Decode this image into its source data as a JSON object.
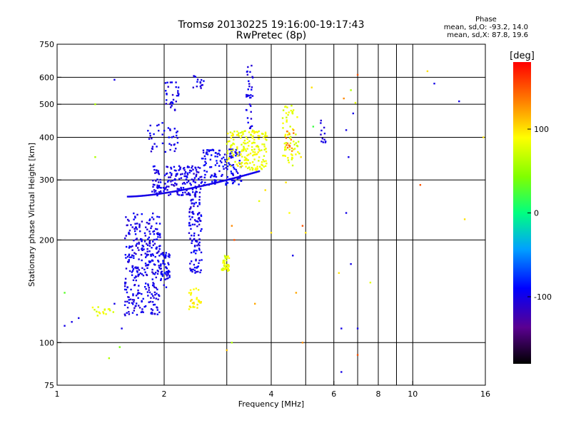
{
  "title": {
    "line1": "Tromsø 20130225 19:16:00-19:17:43",
    "line2": "RwPretec (8p)"
  },
  "phase_info": {
    "label": "Phase",
    "o_line": "mean, sd,O: -93.2, 14.0",
    "x_line": "mean, sd,X:  87.8, 19.6"
  },
  "colorbar": {
    "title": "[deg]",
    "min": -180,
    "max": 180,
    "ticks": [
      100,
      0,
      -100
    ],
    "tick_labels": [
      "100",
      "0",
      "-100"
    ]
  },
  "chart_data": {
    "type": "scatter",
    "xlabel": "Frequency [MHz]",
    "ylabel": "Stationary phase Virtual Height [km]",
    "xscale": "log",
    "yscale": "log",
    "xlim": [
      1,
      16
    ],
    "ylim": [
      75,
      750
    ],
    "x_ticks": [
      1,
      2,
      4,
      6,
      8,
      10,
      16
    ],
    "x_tick_labels": [
      "1",
      "2",
      "4",
      "6",
      "8",
      "10",
      "16"
    ],
    "y_ticks": [
      75,
      100,
      200,
      300,
      400,
      500,
      600,
      750
    ],
    "y_tick_labels": [
      "75",
      "100",
      "200",
      "300",
      "400",
      "500",
      "600",
      "750"
    ],
    "grid": true,
    "clusters": [
      {
        "f": [
          1.55,
          1.95
        ],
        "h": [
          120,
          240
        ],
        "phase": -100,
        "n": 320
      },
      {
        "f": [
          1.95,
          2.08
        ],
        "h": [
          145,
          185
        ],
        "phase": -95,
        "n": 60
      },
      {
        "f": [
          2.35,
          2.55
        ],
        "h": [
          160,
          270
        ],
        "phase": -100,
        "n": 110
      },
      {
        "f": [
          2.35,
          2.55
        ],
        "h": [
          125,
          145
        ],
        "phase": 95,
        "n": 30
      },
      {
        "f": [
          1.85,
          2.55
        ],
        "h": [
          270,
          330
        ],
        "phase": -100,
        "n": 180
      },
      {
        "f": [
          2.55,
          3.3
        ],
        "h": [
          290,
          370
        ],
        "phase": -95,
        "n": 140
      },
      {
        "f": [
          3.0,
          3.9
        ],
        "h": [
          320,
          420
        ],
        "phase": 85,
        "n": 180
      },
      {
        "f": [
          4.3,
          4.8
        ],
        "h": [
          330,
          500
        ],
        "phase": 80,
        "n": 60
      },
      {
        "f": [
          4.4,
          4.65
        ],
        "h": [
          360,
          420
        ],
        "phase": 130,
        "n": 15
      },
      {
        "f": [
          1.8,
          2.2
        ],
        "h": [
          360,
          450
        ],
        "phase": -100,
        "n": 40
      },
      {
        "f": [
          2.0,
          2.2
        ],
        "h": [
          480,
          580
        ],
        "phase": -100,
        "n": 30
      },
      {
        "f": [
          2.4,
          2.6
        ],
        "h": [
          550,
          610
        ],
        "phase": -100,
        "n": 15
      },
      {
        "f": [
          3.4,
          3.55
        ],
        "h": [
          420,
          650
        ],
        "phase": -100,
        "n": 35
      },
      {
        "f": [
          2.9,
          3.05
        ],
        "h": [
          162,
          180
        ],
        "phase": 80,
        "n": 40
      },
      {
        "f": [
          1.25,
          1.45
        ],
        "h": [
          120,
          128
        ],
        "phase": 85,
        "n": 15
      },
      {
        "f": [
          5.5,
          5.7
        ],
        "h": [
          380,
          450
        ],
        "phase": -100,
        "n": 12
      }
    ],
    "curve": {
      "f0": 1.58,
      "f1": 3.7,
      "h0": 268,
      "h1": 318,
      "phase": -100
    },
    "scatter_points": [
      [
        1.05,
        112,
        -100
      ],
      [
        1.1,
        115,
        -100
      ],
      [
        1.15,
        118,
        -100
      ],
      [
        1.3,
        120,
        80
      ],
      [
        1.45,
        130,
        -100
      ],
      [
        1.28,
        500,
        60
      ],
      [
        1.28,
        350,
        60
      ],
      [
        1.45,
        590,
        -100
      ],
      [
        1.4,
        90,
        60
      ],
      [
        1.52,
        110,
        -100
      ],
      [
        1.5,
        97,
        40
      ],
      [
        1.05,
        140,
        30
      ],
      [
        5.0,
        210,
        100
      ],
      [
        4.0,
        210,
        100
      ],
      [
        4.5,
        240,
        90
      ],
      [
        4.4,
        295,
        100
      ],
      [
        4.6,
        180,
        -100
      ],
      [
        4.7,
        140,
        120
      ],
      [
        4.9,
        100,
        130
      ],
      [
        4.9,
        220,
        150
      ],
      [
        5.2,
        560,
        100
      ],
      [
        6.3,
        110,
        -100
      ],
      [
        6.5,
        420,
        -100
      ],
      [
        6.6,
        350,
        -100
      ],
      [
        6.5,
        240,
        -100
      ],
      [
        6.8,
        470,
        -100
      ],
      [
        7.0,
        610,
        150
      ],
      [
        7.0,
        110,
        -100
      ],
      [
        6.9,
        505,
        80
      ],
      [
        6.7,
        550,
        60
      ],
      [
        6.4,
        520,
        130
      ],
      [
        6.2,
        160,
        100
      ],
      [
        7.0,
        92,
        150
      ],
      [
        6.3,
        82,
        -100
      ],
      [
        6.7,
        170,
        -100
      ],
      [
        7.6,
        150,
        80
      ],
      [
        10.5,
        290,
        150
      ],
      [
        11.0,
        625,
        100
      ],
      [
        11.5,
        575,
        -100
      ],
      [
        13.5,
        510,
        -100
      ],
      [
        14.0,
        230,
        100
      ],
      [
        15.8,
        400,
        100
      ],
      [
        5.25,
        430,
        20
      ],
      [
        4.85,
        350,
        100
      ],
      [
        3.0,
        95,
        110
      ],
      [
        3.1,
        100,
        60
      ],
      [
        3.7,
        260,
        80
      ],
      [
        3.85,
        280,
        100
      ],
      [
        3.1,
        220,
        130
      ],
      [
        3.15,
        200,
        150
      ],
      [
        3.6,
        130,
        120
      ]
    ]
  }
}
